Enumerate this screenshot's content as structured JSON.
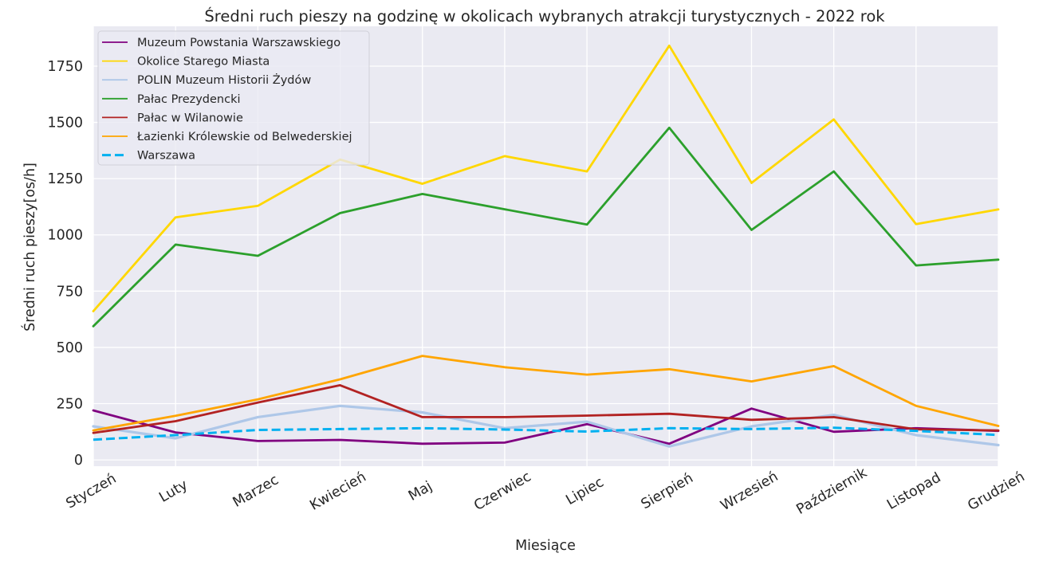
{
  "chart_data": {
    "type": "line",
    "title": "Średni ruch pieszy na godzinę w okolicach wybranych atrakcji turystycznych - 2022 rok",
    "xlabel": "Miesiące",
    "ylabel": "Średni ruch pieszy[os/h]",
    "categories": [
      "Styczeń",
      "Luty",
      "Marzec",
      "Kwiecień",
      "Maj",
      "Czerwiec",
      "Lipiec",
      "Sierpień",
      "Wrzesień",
      "Październik",
      "Listopad",
      "Grudzień"
    ],
    "yticks": [
      0,
      250,
      500,
      750,
      1000,
      1250,
      1500,
      1750
    ],
    "ytick_labels": [
      "0",
      "250",
      "500",
      "750",
      "1000",
      "1250",
      "1500",
      "1750"
    ],
    "ylim": [
      -28,
      1927
    ],
    "grid": true,
    "legend_position": "top-left",
    "background": "#EAEAF2",
    "series": [
      {
        "name": "Muzeum Powstania Warszawskiego",
        "color": "#800080",
        "dashed": false,
        "values": [
          220,
          122,
          84,
          89,
          72,
          77,
          159,
          72,
          228,
          125,
          141,
          129
        ]
      },
      {
        "name": "Okolice Starego Miasta",
        "color": "#FFD700",
        "dashed": false,
        "values": [
          661,
          1078,
          1129,
          1335,
          1227,
          1350,
          1282,
          1841,
          1231,
          1513,
          1048,
          1113
        ]
      },
      {
        "name": "POLIN Muzeum Historii Żydów",
        "color": "#AEC7E8",
        "dashed": false,
        "values": [
          149,
          96,
          190,
          240,
          211,
          141,
          170,
          60,
          149,
          200,
          110,
          66
        ]
      },
      {
        "name": "Pałac Prezydencki",
        "color": "#2CA02C",
        "dashed": false,
        "values": [
          594,
          957,
          907,
          1097,
          1182,
          1114,
          1046,
          1476,
          1022,
          1282,
          864,
          890
        ]
      },
      {
        "name": "Pałac w Wilanowie",
        "color": "#B22222",
        "dashed": false,
        "values": [
          120,
          172,
          255,
          332,
          190,
          190,
          197,
          205,
          178,
          190,
          136,
          131
        ]
      },
      {
        "name": "Łazienki Królewskie od Belwederskiej",
        "color": "#FFA500",
        "dashed": false,
        "values": [
          131,
          196,
          269,
          358,
          462,
          412,
          379,
          403,
          349,
          417,
          240,
          151
        ]
      },
      {
        "name": "Warszawa",
        "color": "#00B0F0",
        "dashed": true,
        "values": [
          90,
          110,
          133,
          137,
          141,
          135,
          126,
          141,
          137,
          143,
          129,
          111
        ]
      }
    ]
  }
}
